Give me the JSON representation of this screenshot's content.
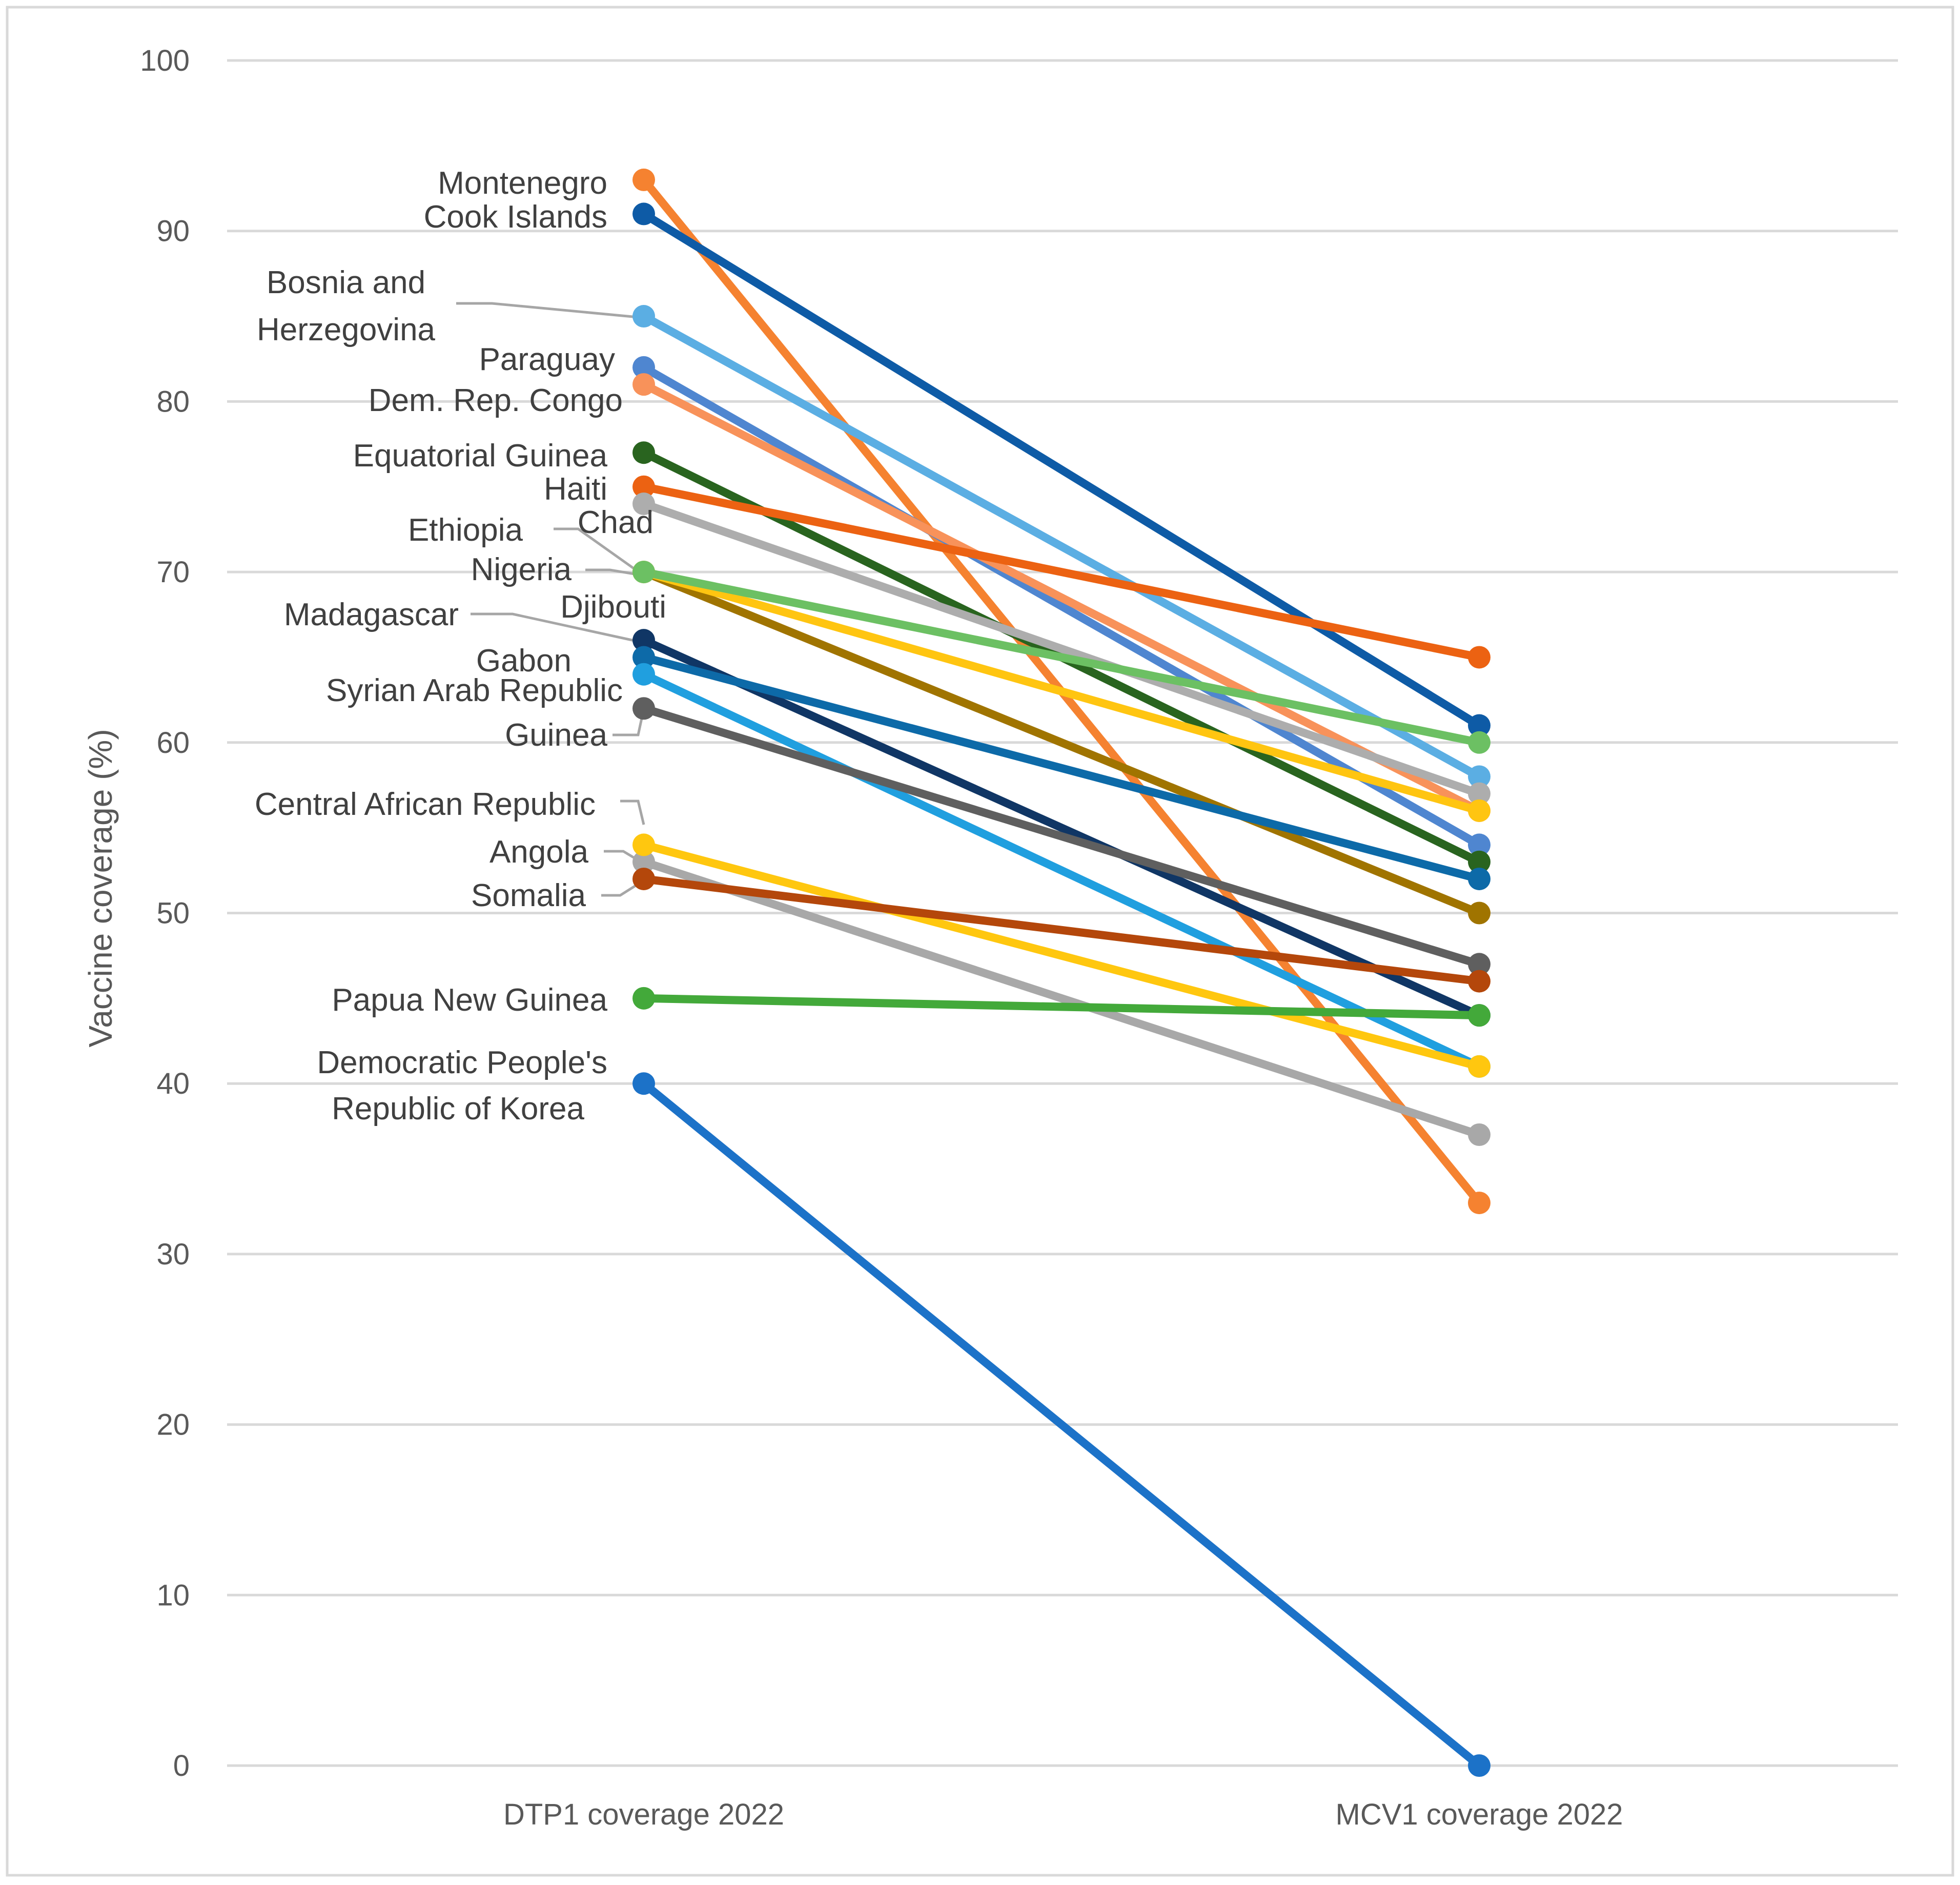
{
  "chart_data": {
    "type": "line",
    "title": "",
    "xlabel": "",
    "ylabel": "Vaccine coverage (%)",
    "categories": [
      "DTP1 coverage 2022",
      "MCV1 coverage 2022"
    ],
    "ylim": [
      0,
      100
    ],
    "yticks": [
      0,
      10,
      20,
      30,
      40,
      50,
      60,
      70,
      80,
      90,
      100
    ],
    "grid": true,
    "series": [
      {
        "name": "Montenegro",
        "values": [
          93,
          33
        ],
        "color": "#F58230"
      },
      {
        "name": "Cook Islands",
        "values": [
          91,
          61
        ],
        "color": "#0E5BA6"
      },
      {
        "name": "Bosnia and Herzegovina",
        "label_lines": [
          "Bosnia and",
          "Herzegovina"
        ],
        "values": [
          85,
          58
        ],
        "color": "#5BAEE3"
      },
      {
        "name": "Paraguay",
        "values": [
          82,
          54
        ],
        "color": "#4F86D0"
      },
      {
        "name": "Dem. Rep. Congo",
        "values": [
          81,
          56
        ],
        "color": "#F8925A"
      },
      {
        "name": "Equatorial Guinea",
        "values": [
          77,
          53
        ],
        "color": "#29641F"
      },
      {
        "name": "Haiti",
        "values": [
          75,
          65
        ],
        "color": "#EC6212"
      },
      {
        "name": "Chad",
        "values": [
          74,
          57
        ],
        "color": "#ADADAD"
      },
      {
        "name": "Ethiopia",
        "values": [
          70,
          50
        ],
        "color": "#A07400"
      },
      {
        "name": "Nigeria",
        "values": [
          70,
          56
        ],
        "color": "#FFC511"
      },
      {
        "name": "Djibouti",
        "values": [
          70,
          60
        ],
        "color": "#6CC063"
      },
      {
        "name": "Madagascar",
        "values": [
          66,
          44
        ],
        "color": "#103665"
      },
      {
        "name": "Gabon",
        "values": [
          65,
          52
        ],
        "color": "#0D6AA8"
      },
      {
        "name": "Syrian Arab Republic",
        "values": [
          64,
          41
        ],
        "color": "#209FDF"
      },
      {
        "name": "Guinea",
        "values": [
          62,
          47
        ],
        "color": "#5F5F5F"
      },
      {
        "name": "Central African Republic",
        "values": [
          53,
          37
        ],
        "color": "#A8A8A8"
      },
      {
        "name": "Angola",
        "values": [
          54,
          41
        ],
        "color": "#FFC70F"
      },
      {
        "name": "Somalia",
        "values": [
          52,
          46
        ],
        "color": "#B4470B"
      },
      {
        "name": "Papua New Guinea",
        "values": [
          45,
          44
        ],
        "color": "#43A93A"
      },
      {
        "name": "Democratic People's Republic of Korea",
        "label_lines": [
          "Democratic People's",
          "Republic of Korea"
        ],
        "values": [
          40,
          0
        ],
        "color": "#1C72C8"
      }
    ]
  }
}
